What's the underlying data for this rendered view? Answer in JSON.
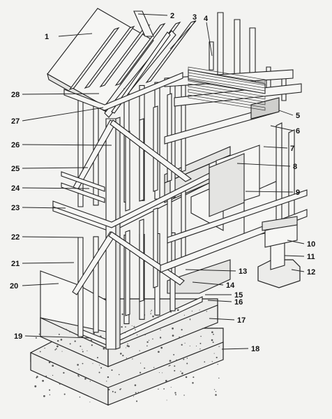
{
  "figure": {
    "callouts": [
      {
        "id": "callout-1",
        "text": "1"
      },
      {
        "id": "callout-2",
        "text": "2"
      },
      {
        "id": "callout-3",
        "text": "3"
      },
      {
        "id": "callout-4",
        "text": "4"
      },
      {
        "id": "callout-5",
        "text": "5"
      },
      {
        "id": "callout-6",
        "text": "6"
      },
      {
        "id": "callout-7",
        "text": "7"
      },
      {
        "id": "callout-8",
        "text": "8"
      },
      {
        "id": "callout-9",
        "text": "9"
      },
      {
        "id": "callout-10",
        "text": "10"
      },
      {
        "id": "callout-11",
        "text": "11"
      },
      {
        "id": "callout-12",
        "text": "12"
      },
      {
        "id": "callout-13",
        "text": "13"
      },
      {
        "id": "callout-14",
        "text": "14"
      },
      {
        "id": "callout-15",
        "text": "15"
      },
      {
        "id": "callout-16",
        "text": "16"
      },
      {
        "id": "callout-17",
        "text": "17"
      },
      {
        "id": "callout-18",
        "text": "18"
      },
      {
        "id": "callout-19",
        "text": "19"
      },
      {
        "id": "callout-20",
        "text": "20"
      },
      {
        "id": "callout-21",
        "text": "21"
      },
      {
        "id": "callout-22",
        "text": "22"
      },
      {
        "id": "callout-23",
        "text": "23"
      },
      {
        "id": "callout-24",
        "text": "24"
      },
      {
        "id": "callout-25",
        "text": "25"
      },
      {
        "id": "callout-26",
        "text": "26"
      },
      {
        "id": "callout-27",
        "text": "27"
      },
      {
        "id": "callout-28",
        "text": "28"
      }
    ]
  }
}
